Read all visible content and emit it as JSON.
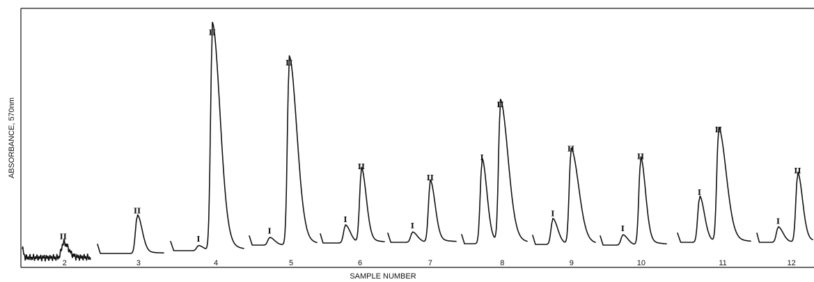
{
  "chart_data": {
    "type": "line",
    "title": "",
    "xlabel": "SAMPLE NUMBER",
    "ylabel": "ABSORBANCE, 570nm",
    "grid": false,
    "legend": "none",
    "ylim": [
      0,
      1
    ],
    "samples": [
      {
        "label": "2",
        "peaks": [
          {
            "name": "II",
            "height": 0.06
          }
        ]
      },
      {
        "label": "3",
        "peaks": [
          {
            "name": "II",
            "height": 0.15
          }
        ]
      },
      {
        "label": "4",
        "peaks": [
          {
            "name": "I",
            "height": 0.02
          },
          {
            "name": "II",
            "height": 0.88
          }
        ]
      },
      {
        "label": "5",
        "peaks": [
          {
            "name": "I",
            "height": 0.03
          },
          {
            "name": "II",
            "height": 0.73
          }
        ]
      },
      {
        "label": "6",
        "peaks": [
          {
            "name": "I",
            "height": 0.07
          },
          {
            "name": "II",
            "height": 0.29
          }
        ]
      },
      {
        "label": "7",
        "peaks": [
          {
            "name": "I",
            "height": 0.04
          },
          {
            "name": "II",
            "height": 0.24
          }
        ]
      },
      {
        "label": "8",
        "peaks": [
          {
            "name": "I",
            "height": 0.33
          },
          {
            "name": "II",
            "height": 0.55
          }
        ]
      },
      {
        "label": "9",
        "peaks": [
          {
            "name": "I",
            "height": 0.1
          },
          {
            "name": "II",
            "height": 0.37
          }
        ]
      },
      {
        "label": "10",
        "peaks": [
          {
            "name": "I",
            "height": 0.04
          },
          {
            "name": "II",
            "height": 0.34
          }
        ]
      },
      {
        "label": "11",
        "peaks": [
          {
            "name": "I",
            "height": 0.18
          },
          {
            "name": "II",
            "height": 0.44
          }
        ]
      },
      {
        "label": "12",
        "peaks": [
          {
            "name": "I",
            "height": 0.06
          },
          {
            "name": "II",
            "height": 0.27
          }
        ]
      }
    ]
  }
}
